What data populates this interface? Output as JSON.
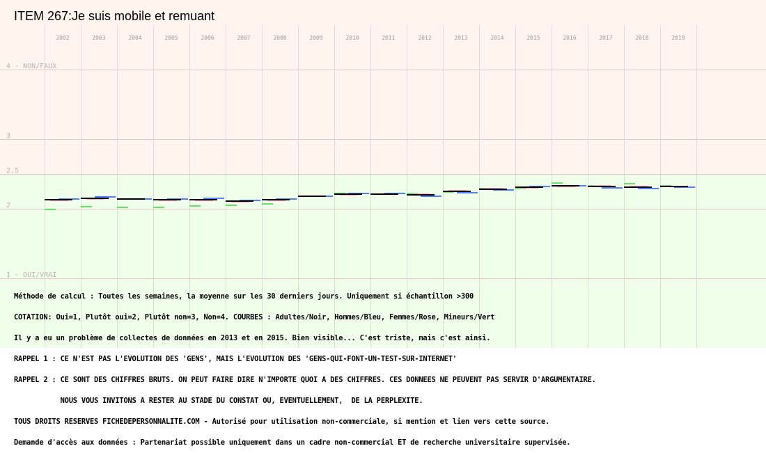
{
  "chart_data": {
    "type": "line",
    "title": "ITEM 267:Je suis mobile et remuant",
    "x": [
      "2002",
      "2003",
      "2004",
      "2005",
      "2006",
      "2007",
      "2008",
      "2009",
      "2010",
      "2011",
      "2012",
      "2013",
      "2014",
      "2015",
      "2016",
      "2017",
      "2018",
      "2019"
    ],
    "y_ticks": [
      {
        "value": 4,
        "label": "4 - NON/FAUX"
      },
      {
        "value": 3,
        "label": "3"
      },
      {
        "value": 2.5,
        "label": "2.5"
      },
      {
        "value": 2,
        "label": "2"
      },
      {
        "value": 1,
        "label": "1 - OUI/VRAI"
      }
    ],
    "ylim": [
      1,
      4
    ],
    "zones": [
      {
        "from": 2.5,
        "to": 4,
        "color": "#fff4ee"
      },
      {
        "from": 1,
        "to": 2.5,
        "color": "#efffea"
      }
    ],
    "grid": true,
    "series": [
      {
        "name": "Adultes",
        "color": "#000000",
        "values": [
          2.13,
          2.15,
          2.14,
          2.13,
          2.13,
          2.11,
          2.13,
          2.18,
          2.21,
          2.21,
          2.2,
          2.25,
          2.28,
          2.31,
          2.33,
          2.32,
          2.31,
          2.32
        ]
      },
      {
        "name": "Hommes",
        "color": "#4f7fff",
        "values": [
          2.14,
          2.17,
          2.14,
          2.14,
          2.15,
          2.12,
          2.14,
          2.18,
          2.22,
          2.22,
          2.18,
          2.23,
          2.27,
          2.32,
          2.33,
          2.3,
          2.29,
          2.31
        ]
      },
      {
        "name": "Femmes",
        "color": "#ff9ec8",
        "values": [
          2.12,
          2.14,
          2.14,
          2.12,
          2.12,
          2.1,
          2.12,
          2.18,
          2.2,
          2.21,
          2.21,
          2.26,
          2.29,
          2.3,
          2.32,
          2.33,
          2.32,
          2.32
        ]
      },
      {
        "name": "Mineurs",
        "color": "#66e066",
        "values": [
          1.99,
          2.03,
          2.02,
          2.02,
          2.04,
          2.05,
          2.07,
          2.18,
          2.22,
          2.21,
          2.22,
          2.24,
          2.29,
          2.29,
          2.37,
          2.33,
          2.36,
          2.33
        ]
      }
    ]
  },
  "notes": [
    "Méthode de calcul : Toutes les semaines, la moyenne sur les 30 derniers jours. Uniquement si échantillon >300",
    "COTATION: Oui=1, Plutôt oui=2, Plutôt non=3, Non=4. COURBES : Adultes/Noir, Hommes/Bleu, Femmes/Rose, Mineurs/Vert",
    "Il y a eu un problème de collectes de données en 2013 et en 2015. Bien visible... C'est triste, mais c'est ainsi.",
    "RAPPEL 1 : CE N'EST PAS L'EVOLUTION DES 'GENS', MAIS L'EVOLUTION DES 'GENS-QUI-FONT-UN-TEST-SUR-INTERNET'",
    "RAPPEL 2 : CE SONT DES CHIFFRES BRUTS. ON PEUT FAIRE DIRE N'IMPORTE QUOI A DES CHIFFRES. CES DONNEES NE PEUVENT PAS SERVIR D'ARGUMENTAIRE.",
    "           NOUS VOUS INVITONS A RESTER AU STADE DU CONSTAT OU, EVENTUELLEMENT,  DE LA PERPLEXITE.",
    "TOUS DROITS RESERVES FICHEDEPERSONNALITE.COM - Autorisé pour utilisation non-commerciale, si mention et lien vers cette source.",
    "Demande d'accès aux données : Partenariat possible uniquement dans un cadre non-commercial ET de recherche universitaire supervisée."
  ]
}
